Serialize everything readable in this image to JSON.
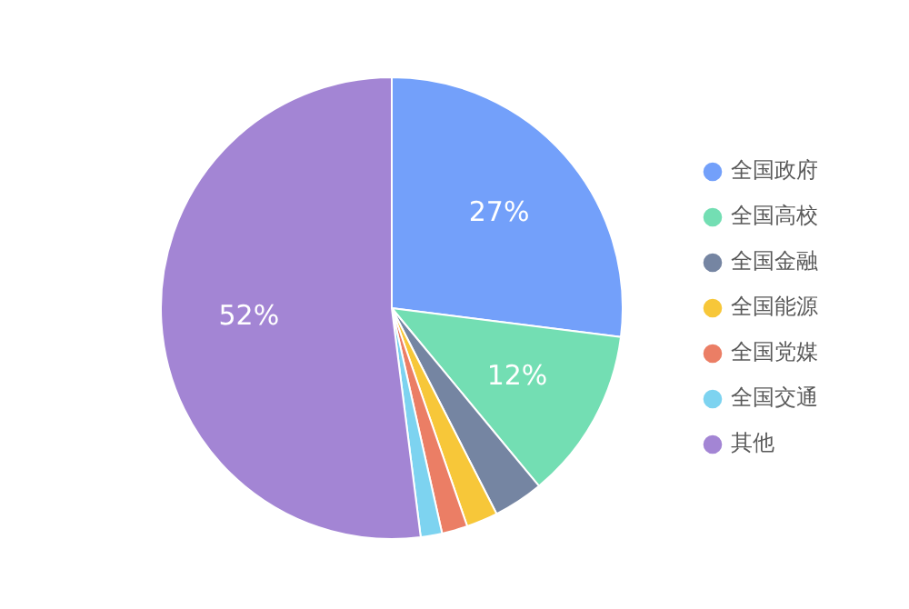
{
  "chart_data": {
    "type": "pie",
    "categories": [
      "全国政府",
      "全国高校",
      "全国金融",
      "全国能源",
      "全国党媒",
      "全国交通",
      "其他"
    ],
    "values": [
      27,
      12,
      3.5,
      2.2,
      1.8,
      1.5,
      52
    ],
    "colors": [
      "#73a0fa",
      "#73deb3",
      "#7585a2",
      "#f7c739",
      "#eb7e65",
      "#7dd3f0",
      "#a385d4"
    ],
    "value_labels": [
      "27%",
      "12%",
      null,
      null,
      null,
      null,
      "52%"
    ],
    "legend": "right"
  }
}
